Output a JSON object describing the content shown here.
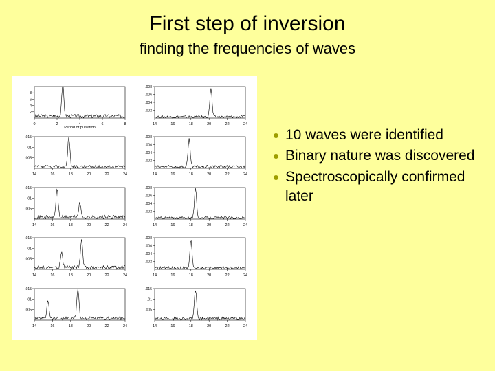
{
  "title": "First step of inversion",
  "subtitle": "finding the frequencies of waves",
  "bullet_color": "#9d9d00",
  "bullets": [
    "10 waves were identified",
    "Binary nature was discovered",
    "Spectroscopically confirmed later"
  ],
  "figure": {
    "background": "#ffffff",
    "panel_count": 10,
    "cols": 2,
    "rows": 5,
    "axis_color": "#000000",
    "trace_color": "#000000",
    "panels": [
      {
        "xlabel": "Period of pulsation",
        "xmin": 0,
        "xmax": 8,
        "xticks": [
          0,
          2,
          4,
          6,
          8
        ],
        "ymax": 10,
        "yticks": [
          2,
          4,
          6,
          8
        ],
        "peaks": [
          {
            "x": 2.5,
            "h": 1.0
          }
        ],
        "noise": 0.12
      },
      {
        "xmin": 14,
        "xmax": 24,
        "xticks": [
          14,
          16,
          18,
          20,
          22,
          24
        ],
        "ymax": 0.008,
        "yticks": [
          0.002,
          0.004,
          0.006,
          0.008
        ],
        "peaks": [
          {
            "x": 20.2,
            "h": 0.9
          }
        ],
        "noise": 0.08
      },
      {
        "xmin": 14,
        "xmax": 24,
        "xticks": [
          14,
          16,
          18,
          20,
          22,
          24
        ],
        "ymax": 0.015,
        "yticks": [
          0.005,
          0.01,
          0.015
        ],
        "peaks": [
          {
            "x": 17.8,
            "h": 0.95
          }
        ],
        "noise": 0.1
      },
      {
        "xmin": 14,
        "xmax": 24,
        "xticks": [
          14,
          16,
          18,
          20,
          22,
          24
        ],
        "ymax": 0.008,
        "yticks": [
          0.002,
          0.004,
          0.006,
          0.008
        ],
        "peaks": [
          {
            "x": 17.8,
            "h": 0.85
          }
        ],
        "noise": 0.1
      },
      {
        "xmin": 14,
        "xmax": 24,
        "xticks": [
          14,
          16,
          18,
          20,
          22,
          24
        ],
        "ymax": 0.015,
        "yticks": [
          0.005,
          0.01,
          0.015
        ],
        "peaks": [
          {
            "x": 16.5,
            "h": 0.9
          },
          {
            "x": 19,
            "h": 0.45
          }
        ],
        "noise": 0.12
      },
      {
        "xmin": 14,
        "xmax": 24,
        "xticks": [
          14,
          16,
          18,
          20,
          22,
          24
        ],
        "ymax": 0.008,
        "yticks": [
          0.002,
          0.004,
          0.006,
          0.008
        ],
        "peaks": [
          {
            "x": 18.5,
            "h": 0.9
          }
        ],
        "noise": 0.08
      },
      {
        "xmin": 14,
        "xmax": 24,
        "xticks": [
          14,
          16,
          18,
          20,
          22,
          24
        ],
        "ymax": 0.015,
        "yticks": [
          0.005,
          0.01,
          0.015
        ],
        "peaks": [
          {
            "x": 17,
            "h": 0.5
          },
          {
            "x": 19.2,
            "h": 0.9
          }
        ],
        "noise": 0.12
      },
      {
        "xmin": 14,
        "xmax": 24,
        "xticks": [
          14,
          16,
          18,
          20,
          22,
          24
        ],
        "ymax": 0.008,
        "yticks": [
          0.002,
          0.004,
          0.006,
          0.008
        ],
        "peaks": [
          {
            "x": 18,
            "h": 0.85
          }
        ],
        "noise": 0.09
      },
      {
        "xmin": 14,
        "xmax": 24,
        "xticks": [
          14,
          16,
          18,
          20,
          22,
          24
        ],
        "ymax": 0.015,
        "yticks": [
          0.005,
          0.01,
          0.015
        ],
        "peaks": [
          {
            "x": 15.5,
            "h": 0.6
          },
          {
            "x": 18.8,
            "h": 0.95
          }
        ],
        "noise": 0.11
      },
      {
        "xmin": 14,
        "xmax": 24,
        "xticks": [
          14,
          16,
          18,
          20,
          22,
          24
        ],
        "ymax": 0.015,
        "yticks": [
          0.005,
          0.01,
          0.015
        ],
        "peaks": [
          {
            "x": 18.5,
            "h": 0.9
          }
        ],
        "noise": 0.1
      }
    ]
  }
}
